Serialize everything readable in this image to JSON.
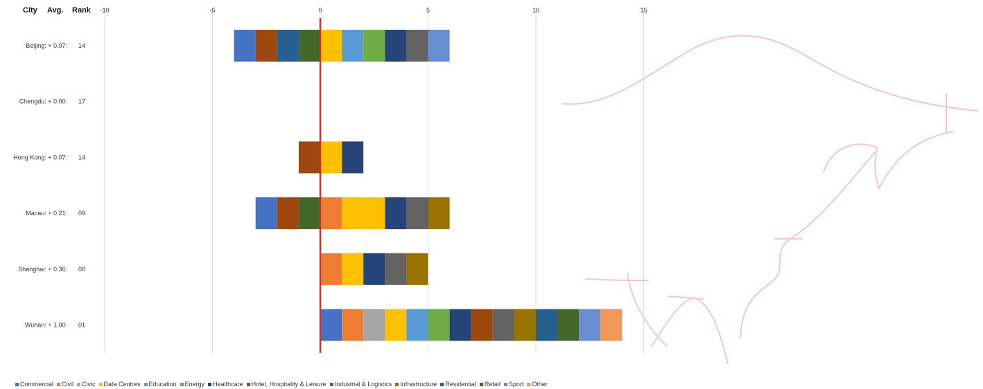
{
  "headers": {
    "city": "City",
    "avg": "Avg.",
    "rank": "Rank"
  },
  "colors": {
    "Commercial": "#4472C4",
    "Civil": "#ED7D31",
    "Civic": "#A5A5A5",
    "Data Centres": "#FFC000",
    "Education": "#5B9BD5",
    "Energy": "#70AD47",
    "Healthcare": "#264478",
    "Hotel, Hospitality & Leisure": "#9E480E",
    "Industrial & Logistics": "#636363",
    "Infrastructure": "#997300",
    "Residential": "#255E91",
    "Retail": "#43682B",
    "Sport": "#698ED0",
    "Other": "#F1975A",
    "zero_line": "#D32F2F",
    "decoration": "#F4C7C7"
  },
  "chart_data": {
    "type": "bar",
    "orientation": "horizontal",
    "stacked": true,
    "xlim": [
      -10,
      15
    ],
    "x_ticks": [
      "-10",
      "-5",
      "0",
      "5",
      "10",
      "15"
    ],
    "grid": true,
    "legend_position": "bottom",
    "series_names": [
      "Commercial",
      "Civil",
      "Civic",
      "Data Centres",
      "Education",
      "Energy",
      "Healthcare",
      "Hotel, Hospitality & Leisure",
      "Industrial & Logistics",
      "Infrastructure",
      "Residential",
      "Retail",
      "Sport",
      "Other"
    ],
    "rows": [
      {
        "city": "Beijing: + 0.07:",
        "rank": "14",
        "negative": [
          "Commercial",
          "Hotel, Hospitality & Leisure",
          "Residential",
          "Retail"
        ],
        "positive": [
          "Data Centres",
          "Education",
          "Energy",
          "Healthcare",
          "Industrial & Logistics",
          "Sport"
        ]
      },
      {
        "city": "Chengdu: + 0.00:",
        "rank": "17",
        "negative": [],
        "positive": []
      },
      {
        "city": "Hong Kong: + 0.07:",
        "rank": "14",
        "negative": [
          "Hotel, Hospitality & Leisure"
        ],
        "positive": [
          "Data Centres",
          "Healthcare"
        ]
      },
      {
        "city": "Macau: + 0.21:",
        "rank": "09",
        "negative": [
          "Commercial",
          "Hotel, Hospitality & Leisure",
          "Retail"
        ],
        "positive": [
          "Civil",
          "Data Centres",
          "Data Centres",
          "Healthcare",
          "Industrial & Logistics",
          "Infrastructure"
        ]
      },
      {
        "city": "Shanghai: + 0.36:",
        "rank": "06",
        "negative": [],
        "positive": [
          "Civil",
          "Data Centres",
          "Healthcare",
          "Industrial & Logistics",
          "Infrastructure"
        ]
      },
      {
        "city": "Wuhan: + 1.00:",
        "rank": "01",
        "negative": [],
        "positive": [
          "Commercial",
          "Civil",
          "Civic",
          "Data Centres",
          "Education",
          "Energy",
          "Healthcare",
          "Hotel, Hospitality & Leisure",
          "Industrial & Logistics",
          "Infrastructure",
          "Residential",
          "Retail",
          "Sport",
          "Other"
        ]
      }
    ]
  }
}
